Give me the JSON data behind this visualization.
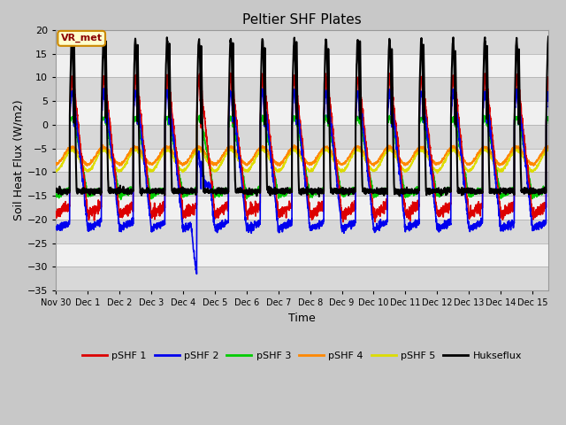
{
  "title": "Peltier SHF Plates",
  "xlabel": "Time",
  "ylabel": "Soil Heat Flux (W/m2)",
  "ylim": [
    -35,
    20
  ],
  "figsize": [
    6.4,
    4.8
  ],
  "dpi": 100,
  "series_colors": {
    "pSHF 1": "#dd0000",
    "pSHF 2": "#0000ee",
    "pSHF 3": "#00cc00",
    "pSHF 4": "#ff8800",
    "pSHF 5": "#dddd00",
    "Hukseflux": "#000000"
  },
  "fig_bg": "#c8c8c8",
  "plot_bg": "#e0e0e0",
  "band_colors": [
    "#d8d8d8",
    "#f0f0f0"
  ],
  "yticks": [
    -35,
    -30,
    -25,
    -20,
    -15,
    -10,
    -5,
    0,
    5,
    10,
    15,
    20
  ],
  "xtick_positions": [
    0,
    1,
    2,
    3,
    4,
    5,
    6,
    7,
    8,
    9,
    10,
    11,
    12,
    13,
    14,
    15
  ],
  "xtick_labels": [
    "Nov 30",
    "Dec 1",
    "Dec 2",
    "Dec 3",
    "Dec 4",
    "Dec 5",
    "Dec 6",
    "Dec 7",
    "Dec 8",
    "Dec 9",
    "Dec 10",
    "Dec 11",
    "Dec 12",
    "Dec 13",
    "Dec 14",
    "Dec 15"
  ],
  "annotation_text": "VR_met",
  "xlim": [
    0,
    15.5
  ]
}
